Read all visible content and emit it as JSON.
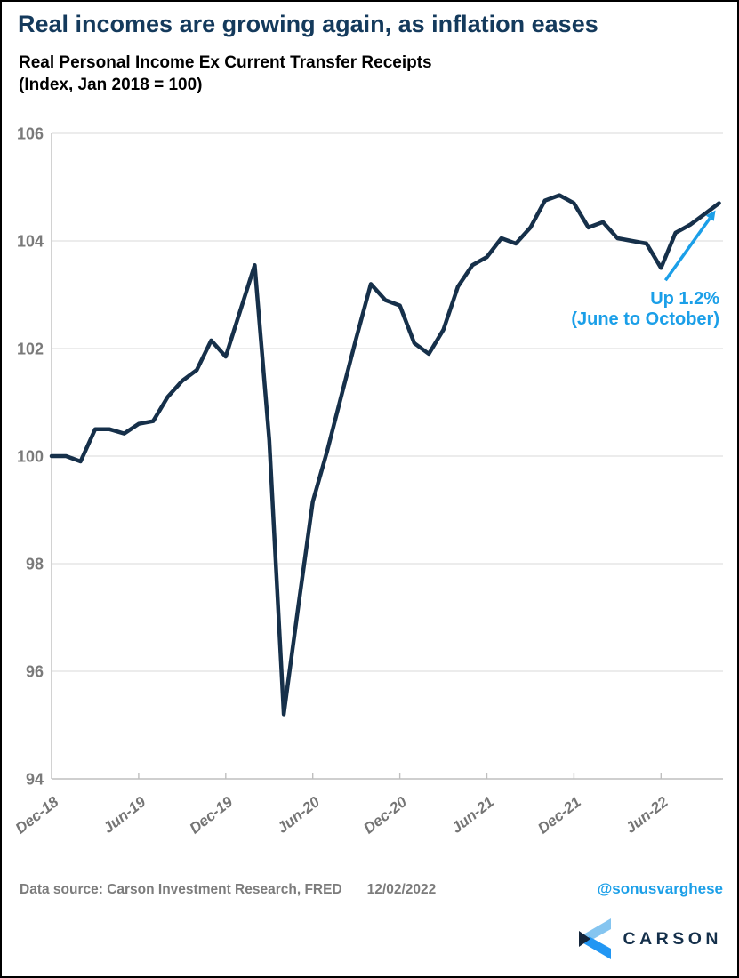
{
  "header": {
    "title": "Real incomes are growing again, as inflation eases",
    "subtitle1": "Real Personal Income Ex Current Transfer Receipts",
    "subtitle2": "(Index, Jan 2018 = 100)"
  },
  "chart_data": {
    "type": "line",
    "title": "Real incomes are growing again, as inflation eases",
    "subtitle": "Real Personal Income Ex Current Transfer Receipts (Index, Jan 2018 = 100)",
    "x_start_month": "Dec-18",
    "x_end_month": "Oct-22",
    "x_tick_labels": [
      "Dec-18",
      "Jun-19",
      "Dec-19",
      "Jun-20",
      "Dec-20",
      "Jun-21",
      "Dec-21",
      "Jun-22"
    ],
    "x_tick_month_interval": 6,
    "y_ticks": [
      94,
      96,
      98,
      100,
      102,
      104,
      106
    ],
    "ylim": [
      94,
      106
    ],
    "grid": true,
    "legend": "none",
    "series": [
      {
        "name": "Real Personal Income Ex Current Transfer Receipts",
        "frequency": "monthly",
        "values": [
          100.0,
          100.0,
          99.9,
          100.5,
          100.5,
          100.42,
          100.6,
          100.65,
          101.1,
          101.4,
          101.6,
          102.15,
          101.85,
          102.7,
          103.55,
          100.3,
          95.2,
          97.2,
          99.15,
          100.1,
          101.15,
          102.2,
          103.2,
          102.9,
          102.8,
          102.1,
          101.9,
          102.35,
          103.15,
          103.55,
          103.7,
          104.05,
          103.95,
          104.25,
          104.75,
          104.85,
          104.7,
          104.25,
          104.35,
          104.05,
          104.0,
          103.95,
          103.5,
          104.15,
          104.3,
          104.5,
          104.7
        ]
      }
    ],
    "annotation": {
      "line1": "Up 1.2%",
      "line2": "(June to October)",
      "arrow_from": "Jun-22",
      "arrow_to": "Oct-22"
    },
    "colors": {
      "line": "#16304a",
      "accent_blue": "#1b9fe8",
      "gridline": "#d9d9d9",
      "axis_label": "#7a7a7a"
    }
  },
  "footer": {
    "source": "Data source: Carson Investment Research, FRED",
    "date": "12/02/2022",
    "handle": "@sonusvarghese",
    "handle_color": "#1b9fe8"
  },
  "logo": {
    "text": "CARSON",
    "icon_light_blue": "#85c5f0",
    "icon_blue": "#2196f3",
    "icon_navy": "#15263b"
  }
}
